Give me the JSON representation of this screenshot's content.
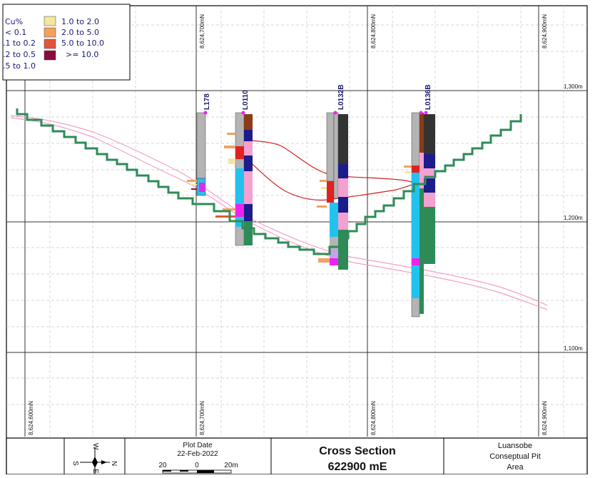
{
  "legend": {
    "title": "Cu%",
    "left_items": [
      "< 0.1",
      ".1 to 0.2",
      ".2 to 0.5",
      ".5 to 1.0"
    ],
    "right_items": [
      {
        "label": "1.0 to 2.0",
        "color": "#f2e6a0"
      },
      {
        "label": "2.0 to 5.0",
        "color": "#f4a15c"
      },
      {
        "label": "5.0 to 10.0",
        "color": "#e2553a"
      },
      {
        "label": ">= 10.0",
        "color": "#8b0a3c"
      }
    ]
  },
  "northings_top": [
    "8,624,700mN",
    "8,624,800mN",
    "8,624,900mN"
  ],
  "northings_bottom": [
    "8,624,600mN",
    "8,624,700mN",
    "8,624,800mN",
    "8,624,900mN"
  ],
  "elevations": [
    "1,300m",
    "1,200m",
    "1,100m"
  ],
  "holes": [
    "L178",
    "L0110",
    "L0132B",
    "L0136B"
  ],
  "title_block": {
    "north_arrow": {
      "n": "N",
      "s": "S",
      "w": "W",
      "e": "E"
    },
    "plot_date_label": "Plot Date",
    "plot_date": "22-Feb-2022",
    "scale_labels": [
      "20",
      "0",
      "20m"
    ],
    "section_title": "Cross Section",
    "section_value": "622900 mE",
    "project_lines": [
      "Luansobe",
      "Conseptual Pit",
      "Area"
    ]
  },
  "colors": {
    "pit_line": "#2e8b57",
    "topo_line": "#f0a0c8",
    "grade_line": "#d42020",
    "hole_grey": "#b4b4b4",
    "cyan": "#22c2ee",
    "pink": "#f4a0d0",
    "navy": "#1c1c8c",
    "green": "#2e8b57",
    "dark": "#333333",
    "magenta": "#ee22ee"
  }
}
